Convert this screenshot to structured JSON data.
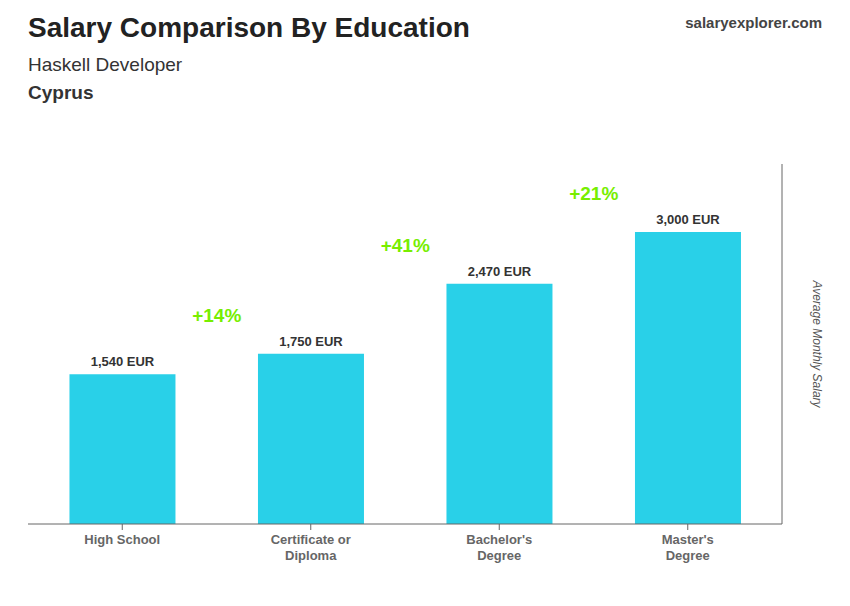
{
  "chart_data": {
    "type": "bar",
    "title": "Salary Comparison By Education",
    "subtitle": [
      "Haskell Developer",
      "Cyprus"
    ],
    "source": "salaryexplorer.com",
    "ylabel": "Average Monthly Salary",
    "categories": [
      "High School",
      "Certificate or\nDiploma",
      "Bachelor's\nDegree",
      "Master's\nDegree"
    ],
    "values": [
      1540,
      1750,
      2470,
      3000
    ],
    "value_labels": [
      "1,540 EUR",
      "1,750 EUR",
      "2,470 EUR",
      "3,000 EUR"
    ],
    "data_labels": true,
    "color": "#29d0e8",
    "ylim": [
      0,
      3700
    ],
    "grid": false,
    "tick_labels": "x",
    "annotations": [
      {
        "text": "+14%",
        "color": "#77ee00"
      },
      {
        "text": "+41%",
        "color": "#77ee00"
      },
      {
        "text": "+21%",
        "color": "#77ee00"
      }
    ]
  }
}
